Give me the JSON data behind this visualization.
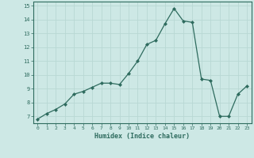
{
  "x": [
    0,
    1,
    2,
    3,
    4,
    5,
    6,
    7,
    8,
    9,
    10,
    11,
    12,
    13,
    14,
    15,
    16,
    17,
    18,
    19,
    20,
    21,
    22,
    23
  ],
  "y": [
    6.8,
    7.2,
    7.5,
    7.9,
    8.6,
    8.8,
    9.1,
    9.4,
    9.4,
    9.3,
    10.1,
    11.0,
    12.2,
    12.5,
    13.7,
    14.8,
    13.9,
    13.8,
    9.7,
    9.6,
    7.0,
    7.0,
    8.6,
    9.2
  ],
  "xlabel": "Humidex (Indice chaleur)",
  "ylim": [
    6.5,
    15.3
  ],
  "xlim": [
    -0.5,
    23.5
  ],
  "yticks": [
    7,
    8,
    9,
    10,
    11,
    12,
    13,
    14,
    15
  ],
  "xticks": [
    0,
    1,
    2,
    3,
    4,
    5,
    6,
    7,
    8,
    9,
    10,
    11,
    12,
    13,
    14,
    15,
    16,
    17,
    18,
    19,
    20,
    21,
    22,
    23
  ],
  "line_color": "#2e6b5e",
  "marker_color": "#2e6b5e",
  "bg_color": "#cde8e5",
  "grid_color": "#b8d8d4",
  "axis_color": "#2e6b5e",
  "tick_label_color": "#2e6b5e",
  "xlabel_color": "#2e6b5e",
  "figsize": [
    3.2,
    2.0
  ],
  "dpi": 100
}
